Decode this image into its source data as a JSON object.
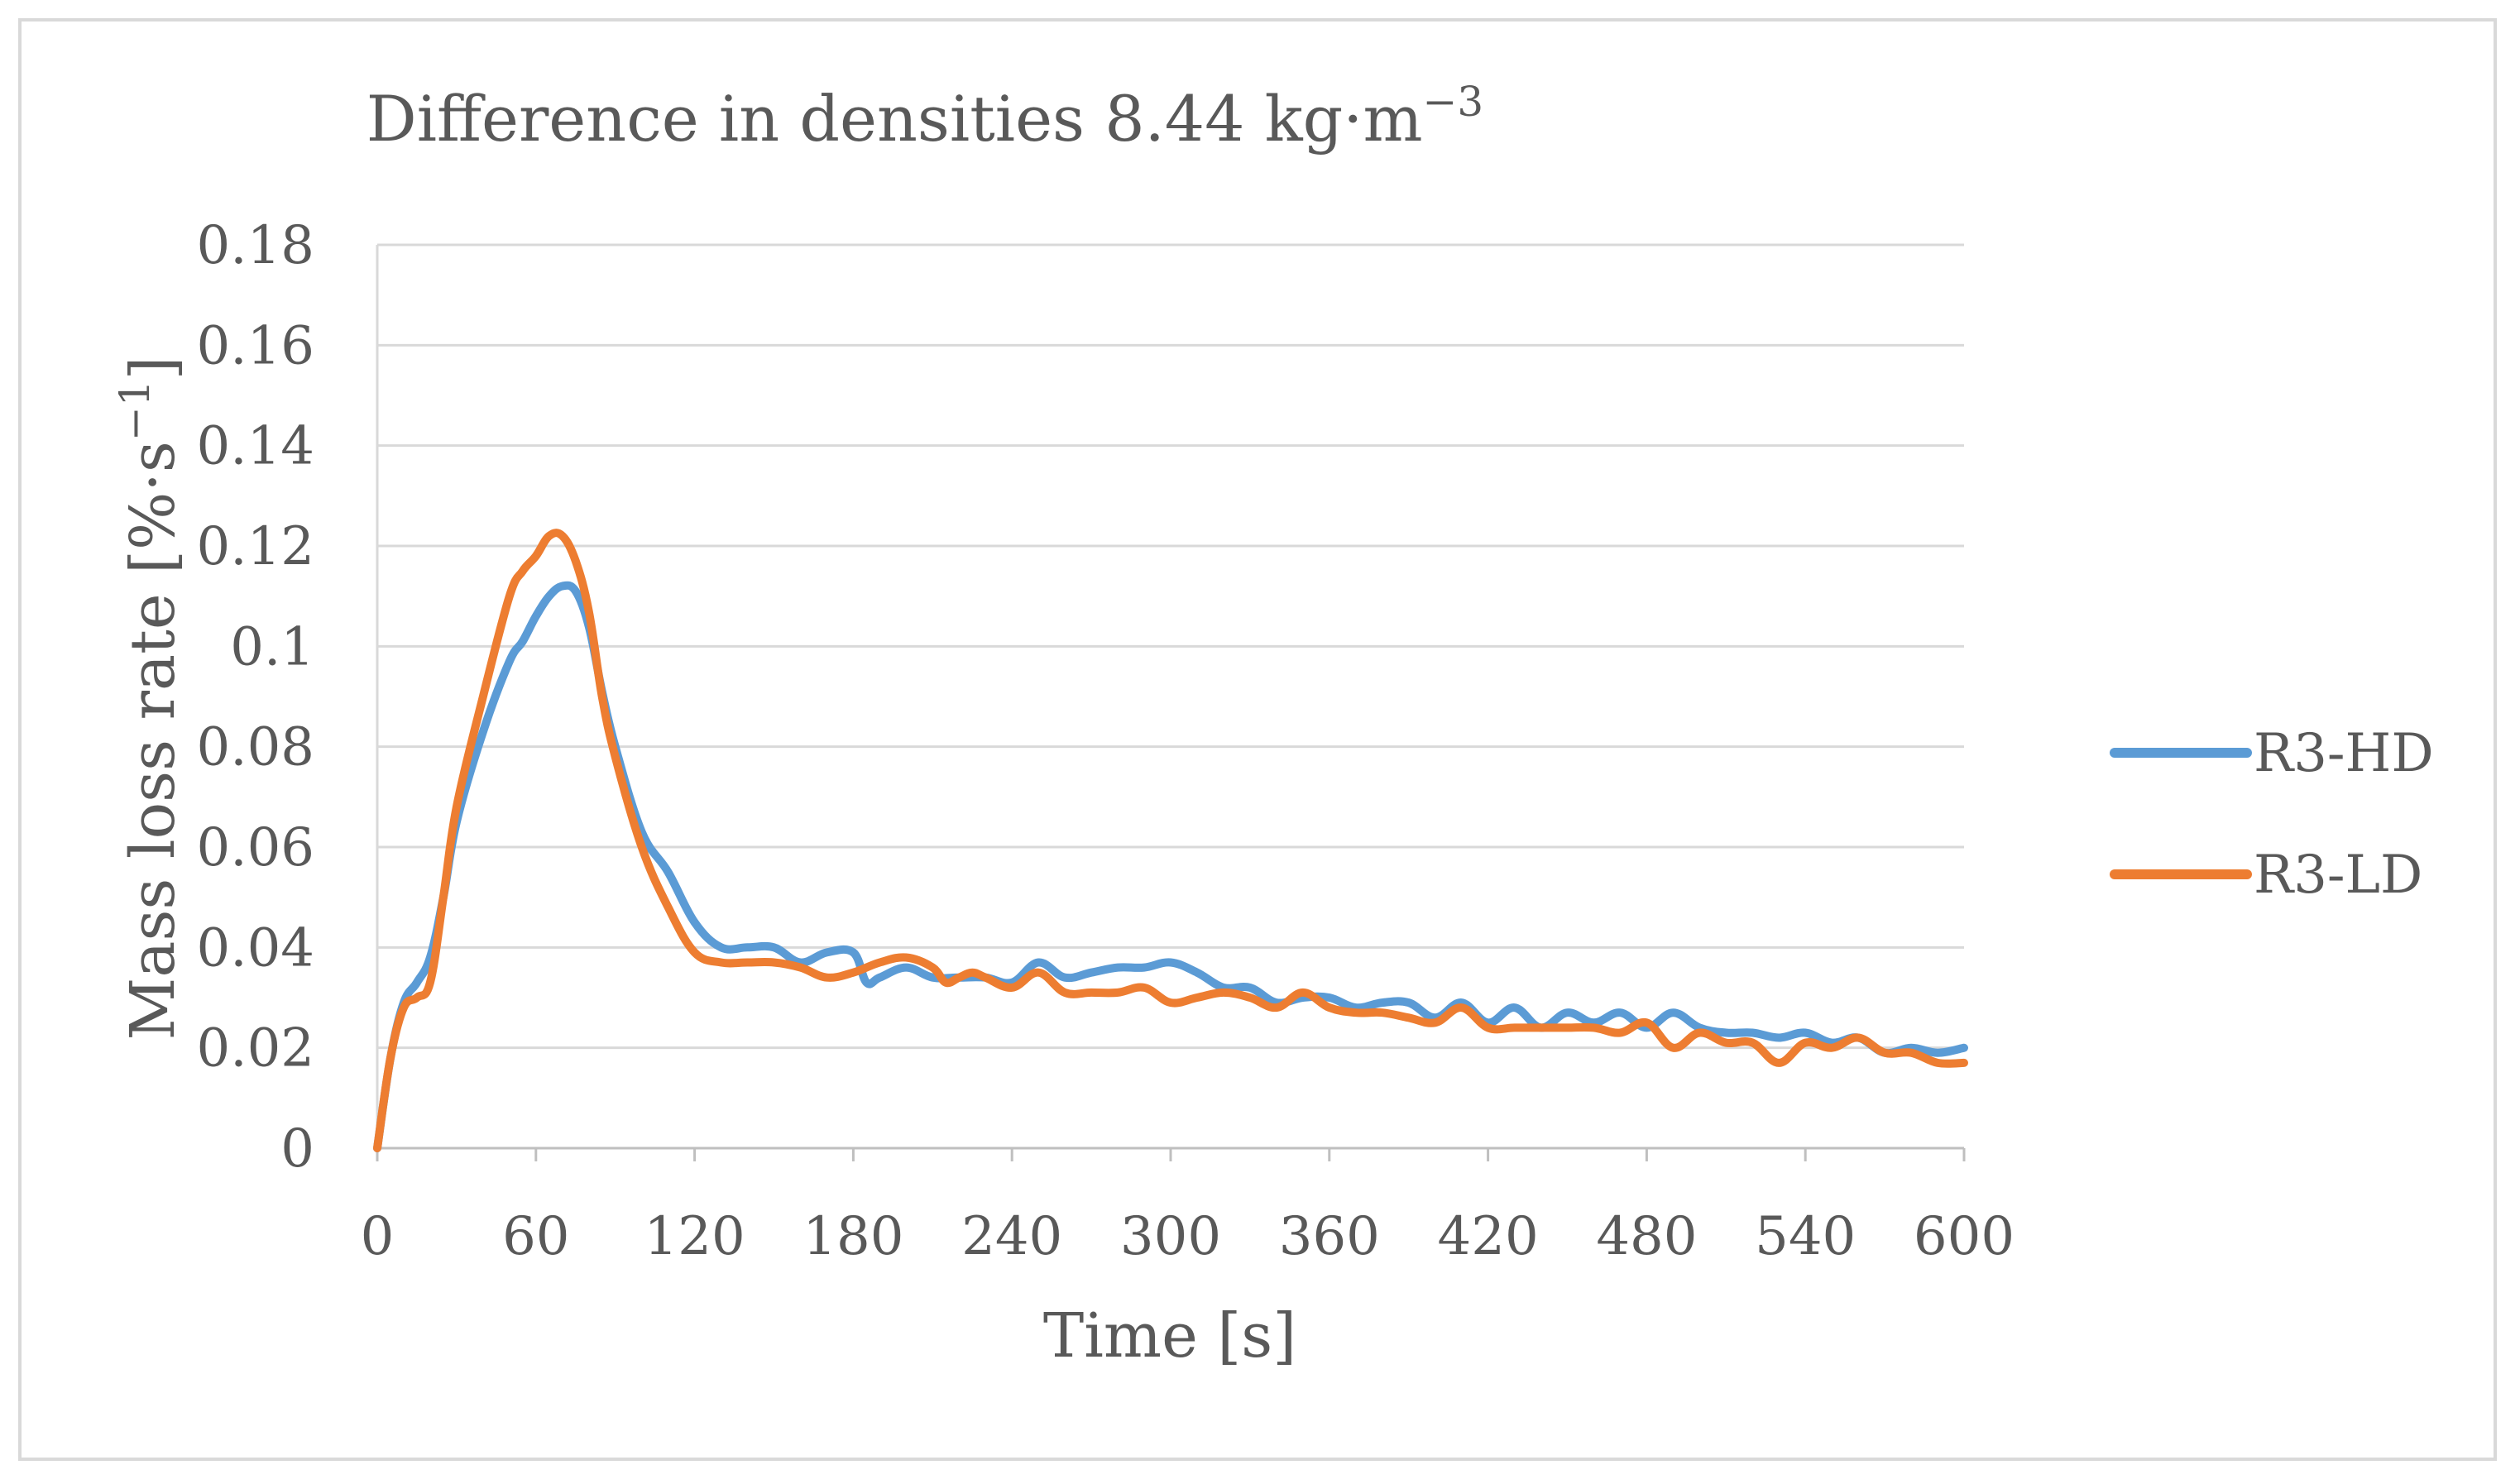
{
  "chart_data": {
    "type": "line",
    "title": "Difference in densities 8.44 kg·m",
    "title_superscript": "−3",
    "xlabel": "Time [s]",
    "ylabel": "Mass loss rate [%·s",
    "ylabel_superscript": "−1",
    "ylabel_suffix": "]",
    "xlim": [
      0,
      600
    ],
    "ylim": [
      0,
      0.18
    ],
    "x_ticks": [
      0,
      60,
      120,
      180,
      240,
      300,
      360,
      420,
      480,
      540,
      600
    ],
    "x_tick_labels": [
      "0",
      "60",
      "120",
      "180",
      "240",
      "300",
      "360",
      "420",
      "480",
      "540",
      "600"
    ],
    "y_ticks": [
      0,
      0.02,
      0.04,
      0.06,
      0.08,
      0.1,
      0.12,
      0.14,
      0.16,
      0.18
    ],
    "y_tick_labels": [
      "0",
      "0.02",
      "0.04",
      "0.06",
      "0.08",
      "0.1",
      "0.12",
      "0.14",
      "0.16",
      "0.18"
    ],
    "grid": true,
    "legend_position": "right",
    "series": [
      {
        "name": "R3-HD",
        "color": "#5b9bd5",
        "x": [
          0,
          5,
          10,
          15,
          20,
          25,
          30,
          40,
          50,
          55,
          60,
          65,
          70,
          75,
          80,
          85,
          90,
          100,
          110,
          120,
          130,
          140,
          150,
          160,
          170,
          180,
          185,
          190,
          200,
          210,
          220,
          230,
          240,
          250,
          260,
          270,
          280,
          290,
          300,
          310,
          320,
          330,
          340,
          350,
          360,
          370,
          380,
          390,
          400,
          410,
          420,
          430,
          440,
          450,
          460,
          470,
          480,
          490,
          500,
          510,
          520,
          530,
          540,
          550,
          560,
          570,
          580,
          590,
          600
        ],
        "y": [
          0,
          0.018,
          0.029,
          0.033,
          0.038,
          0.05,
          0.065,
          0.083,
          0.097,
          0.101,
          0.106,
          0.11,
          0.112,
          0.111,
          0.104,
          0.091,
          0.08,
          0.063,
          0.055,
          0.045,
          0.04,
          0.04,
          0.04,
          0.037,
          0.039,
          0.039,
          0.033,
          0.034,
          0.036,
          0.034,
          0.034,
          0.034,
          0.033,
          0.037,
          0.034,
          0.035,
          0.036,
          0.036,
          0.037,
          0.035,
          0.032,
          0.032,
          0.029,
          0.03,
          0.03,
          0.028,
          0.029,
          0.029,
          0.026,
          0.029,
          0.025,
          0.028,
          0.024,
          0.027,
          0.025,
          0.027,
          0.024,
          0.027,
          0.024,
          0.023,
          0.023,
          0.022,
          0.023,
          0.021,
          0.022,
          0.019,
          0.02,
          0.019,
          0.02
        ]
      },
      {
        "name": "R3-LD",
        "color": "#ed7d31",
        "x": [
          0,
          5,
          10,
          15,
          20,
          25,
          30,
          40,
          50,
          55,
          60,
          65,
          70,
          75,
          80,
          85,
          90,
          100,
          110,
          120,
          130,
          140,
          150,
          160,
          170,
          180,
          190,
          200,
          210,
          215,
          220,
          225,
          230,
          240,
          250,
          260,
          270,
          280,
          290,
          300,
          310,
          320,
          330,
          340,
          350,
          360,
          370,
          380,
          390,
          400,
          410,
          420,
          430,
          440,
          450,
          460,
          470,
          480,
          490,
          500,
          510,
          520,
          530,
          540,
          550,
          560,
          570,
          580,
          590,
          600
        ],
        "y": [
          0,
          0.018,
          0.028,
          0.03,
          0.033,
          0.05,
          0.068,
          0.09,
          0.11,
          0.115,
          0.118,
          0.122,
          0.122,
          0.117,
          0.107,
          0.09,
          0.078,
          0.06,
          0.048,
          0.039,
          0.037,
          0.037,
          0.037,
          0.036,
          0.034,
          0.035,
          0.037,
          0.038,
          0.036,
          0.033,
          0.034,
          0.035,
          0.034,
          0.032,
          0.035,
          0.031,
          0.031,
          0.031,
          0.032,
          0.029,
          0.03,
          0.031,
          0.03,
          0.028,
          0.031,
          0.028,
          0.027,
          0.027,
          0.026,
          0.025,
          0.028,
          0.024,
          0.024,
          0.024,
          0.024,
          0.024,
          0.023,
          0.025,
          0.02,
          0.023,
          0.021,
          0.021,
          0.017,
          0.021,
          0.02,
          0.022,
          0.019,
          0.019,
          0.017,
          0.017
        ]
      }
    ]
  }
}
